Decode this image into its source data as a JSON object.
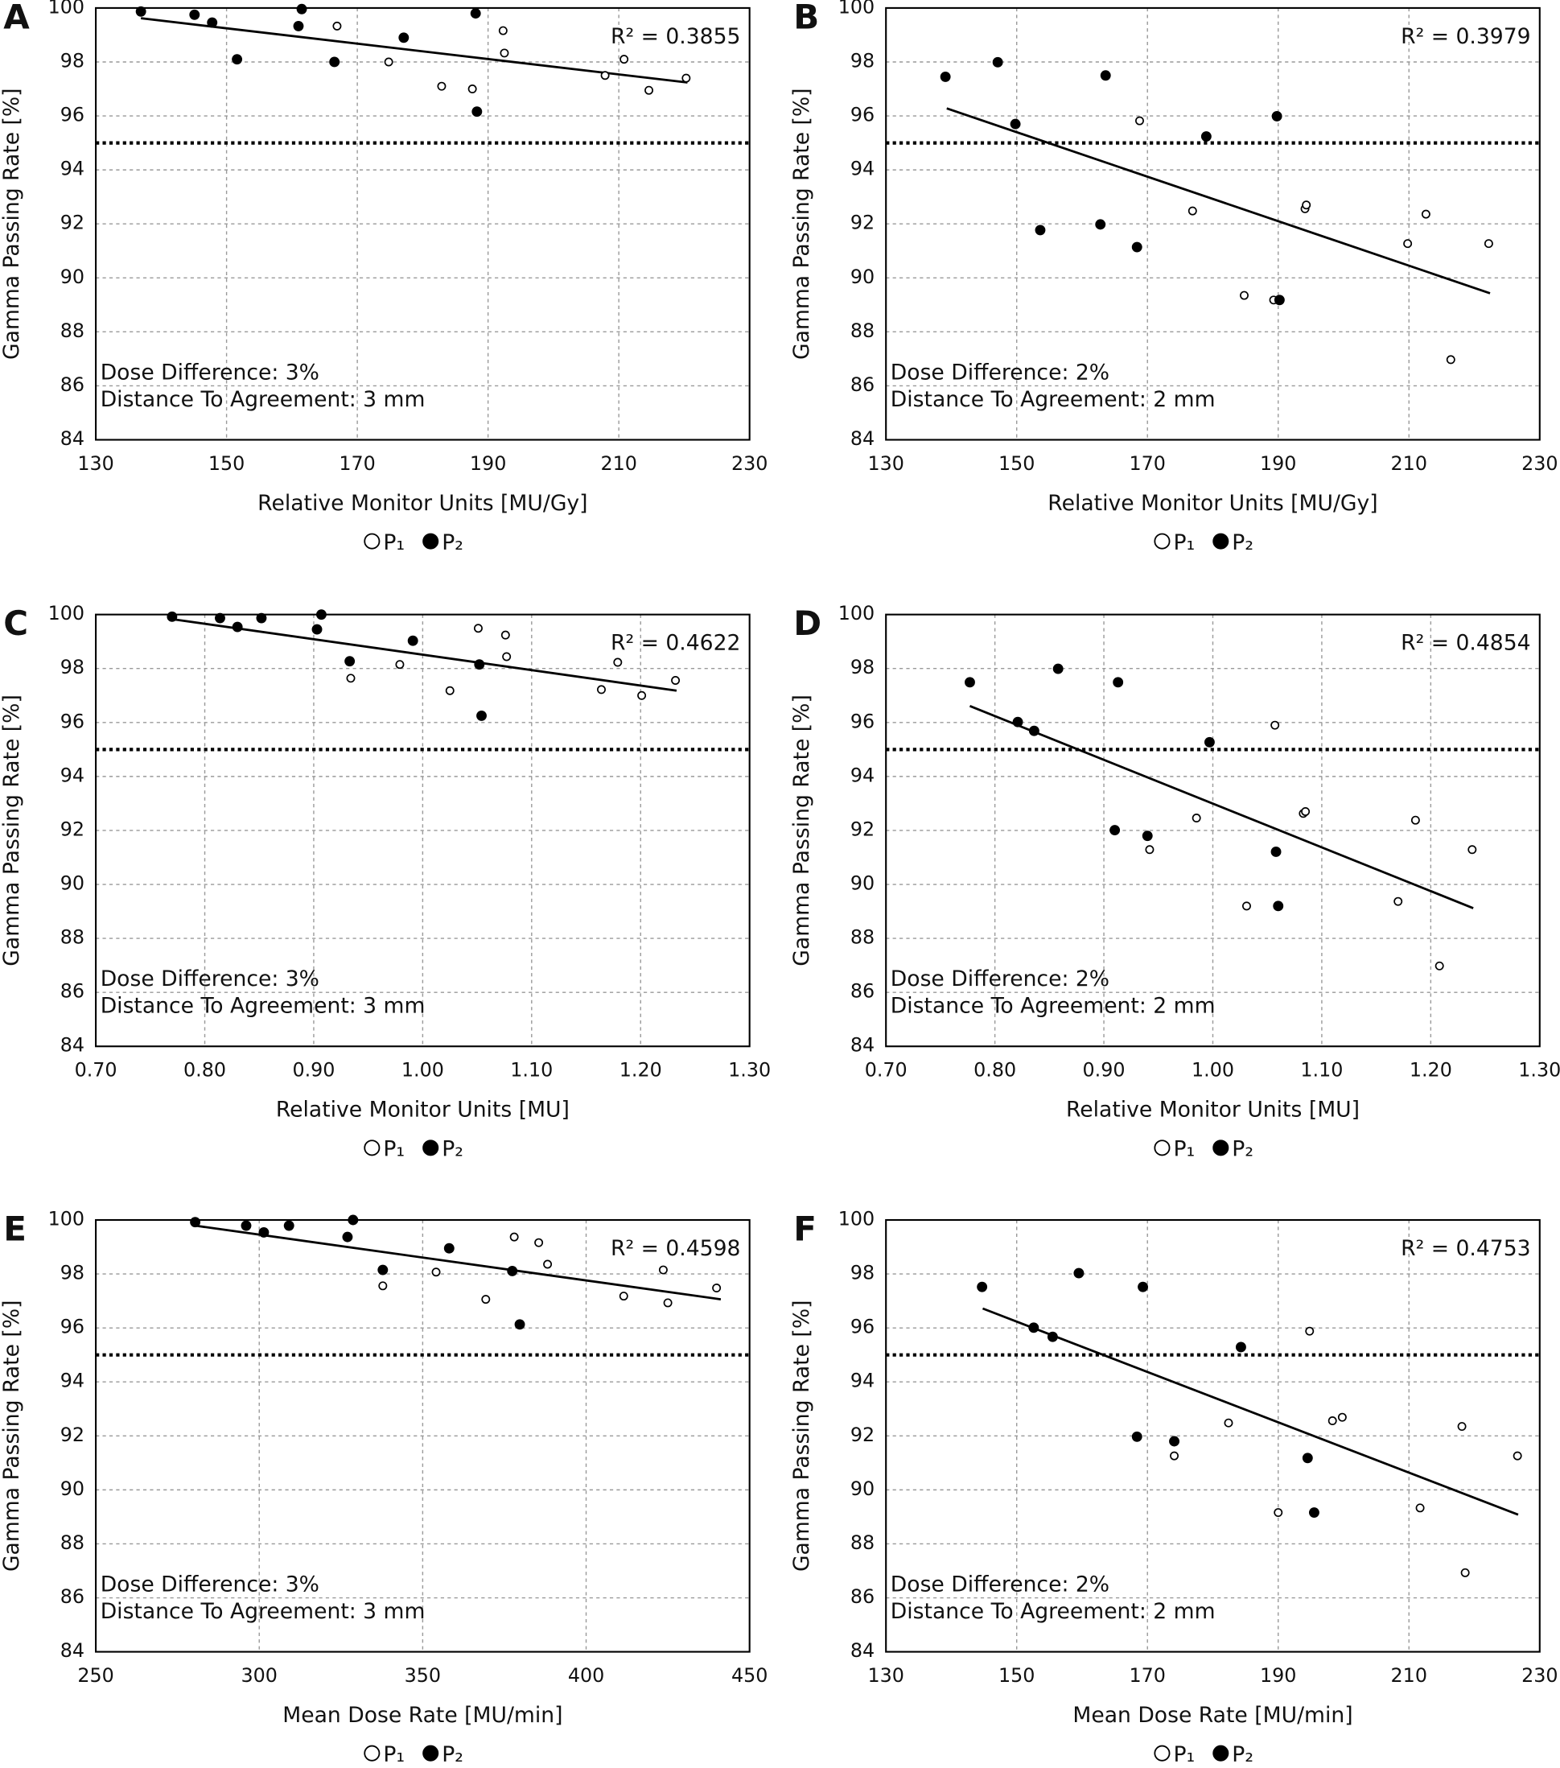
{
  "chart_data": [
    {
      "type": "scatter",
      "panel": "A",
      "xlabel": "Relative Monitor Units [MU/Gy]",
      "ylabel": "Gamma Passing Rate [%]",
      "xlim": [
        130,
        230
      ],
      "ylim": [
        84,
        100
      ],
      "xticks": [
        130,
        150,
        170,
        190,
        210,
        230
      ],
      "yticks": [
        84,
        86,
        88,
        90,
        92,
        94,
        96,
        98,
        100
      ],
      "grid": true,
      "annotation": "R² = 0.3855",
      "notes": [
        "Dose Difference: 3%",
        "Distance To Agreement: 3 mm"
      ],
      "threshold": 95,
      "fit": {
        "x": [
          136.9,
          220.5
        ],
        "y": [
          99.62,
          97.24
        ]
      },
      "series": [
        {
          "name": "P₁",
          "color": "#000000",
          "marker": "open",
          "x": [
            166.9,
            174.8,
            182.9,
            187.6,
            192.3,
            192.5,
            207.9,
            210.8,
            214.6,
            220.3
          ],
          "values": [
            99.33,
            98.0,
            97.1,
            97.0,
            99.16,
            98.33,
            97.5,
            98.1,
            96.95,
            97.4
          ]
        },
        {
          "name": "P₂",
          "color": "#000000",
          "marker": "filled",
          "x": [
            136.9,
            145.1,
            147.8,
            151.6,
            161.0,
            161.5,
            166.5,
            177.1,
            188.1,
            188.3
          ],
          "values": [
            99.87,
            99.75,
            99.46,
            98.1,
            99.33,
            99.96,
            98.0,
            98.9,
            99.8,
            96.16
          ]
        }
      ]
    },
    {
      "type": "scatter",
      "panel": "B",
      "xlabel": "Relative Monitor Units [MU/Gy]",
      "ylabel": "Gamma Passing Rate [%]",
      "xlim": [
        130,
        230
      ],
      "ylim": [
        84,
        100
      ],
      "xticks": [
        130,
        150,
        170,
        190,
        210,
        230
      ],
      "yticks": [
        84,
        86,
        88,
        90,
        92,
        94,
        96,
        98,
        100
      ],
      "grid": true,
      "annotation": "R² = 0.3979",
      "notes": [
        "Dose Difference: 2%",
        "Distance To Agreement: 2 mm"
      ],
      "threshold": 95,
      "fit": {
        "x": [
          139.3,
          222.4
        ],
        "y": [
          96.28,
          89.43
        ]
      },
      "series": [
        {
          "name": "P₁",
          "color": "#000000",
          "marker": "open",
          "x": [
            168.8,
            176.9,
            184.8,
            189.3,
            194.1,
            194.3,
            209.8,
            212.6,
            216.4,
            222.2
          ],
          "values": [
            95.82,
            92.48,
            89.35,
            89.18,
            92.56,
            92.7,
            91.27,
            92.36,
            86.97,
            91.27
          ]
        },
        {
          "name": "P₂",
          "color": "#000000",
          "marker": "filled",
          "x": [
            139.1,
            147.1,
            149.8,
            153.6,
            162.8,
            163.6,
            168.4,
            179.0,
            189.8,
            190.2
          ],
          "values": [
            97.45,
            97.99,
            95.7,
            91.77,
            91.98,
            97.5,
            91.14,
            95.24,
            95.99,
            89.18
          ]
        }
      ]
    },
    {
      "type": "scatter",
      "panel": "C",
      "xlabel": "Relative Monitor Units [MU]",
      "ylabel": "Gamma Passing Rate [%]",
      "xlim": [
        0.7,
        1.3
      ],
      "ylim": [
        84,
        100
      ],
      "xticks": [
        {
          "value": 0.7,
          "label": "0.70"
        },
        {
          "value": 0.8,
          "label": "0.80"
        },
        {
          "value": 0.9,
          "label": "0.90"
        },
        {
          "value": 1,
          "label": "1.00"
        },
        {
          "value": 1.1,
          "label": "1.10"
        },
        {
          "value": 1.2,
          "label": "1.20"
        },
        {
          "value": 1.3,
          "label": "1.30"
        }
      ],
      "yticks": [
        84,
        86,
        88,
        90,
        92,
        94,
        96,
        98,
        100
      ],
      "grid": true,
      "annotation": "R² = 0.4622",
      "notes": [
        "Dose Difference: 3%",
        "Distance To Agreement: 3 mm"
      ],
      "threshold": 95,
      "fit": {
        "x": [
          0.77,
          1.233
        ],
        "y": [
          99.83,
          97.18
        ]
      },
      "series": [
        {
          "name": "P₁",
          "color": "#000000",
          "marker": "open",
          "x": [
            0.934,
            0.979,
            1.025,
            1.051,
            1.076,
            1.077,
            1.164,
            1.179,
            1.201,
            1.232
          ],
          "values": [
            97.64,
            98.15,
            97.18,
            99.49,
            99.24,
            98.44,
            97.22,
            98.23,
            97.0,
            97.56
          ]
        },
        {
          "name": "P₂",
          "color": "#000000",
          "marker": "filled",
          "x": [
            0.77,
            0.814,
            0.83,
            0.852,
            0.903,
            0.907,
            0.933,
            0.991,
            1.052,
            1.054
          ],
          "values": [
            99.92,
            99.87,
            99.54,
            99.87,
            99.45,
            100.0,
            98.27,
            99.03,
            98.15,
            96.25
          ]
        }
      ]
    },
    {
      "type": "scatter",
      "panel": "D",
      "xlabel": "Relative Monitor Units [MU]",
      "ylabel": "Gamma Passing Rate [%]",
      "xlim": [
        0.7,
        1.3
      ],
      "ylim": [
        84,
        100
      ],
      "xticks": [
        {
          "value": 0.7,
          "label": "0.70"
        },
        {
          "value": 0.8,
          "label": "0.80"
        },
        {
          "value": 0.9,
          "label": "0.90"
        },
        {
          "value": 1,
          "label": "1.00"
        },
        {
          "value": 1.1,
          "label": "1.10"
        },
        {
          "value": 1.2,
          "label": "1.20"
        },
        {
          "value": 1.3,
          "label": "1.30"
        }
      ],
      "yticks": [
        84,
        86,
        88,
        90,
        92,
        94,
        96,
        98,
        100
      ],
      "grid": true,
      "annotation": "R² = 0.4854",
      "notes": [
        "Dose Difference: 2%",
        "Distance To Agreement: 2 mm"
      ],
      "threshold": 95,
      "fit": {
        "x": [
          0.777,
          1.239
        ],
        "y": [
          96.61,
          89.12
        ]
      },
      "series": [
        {
          "name": "P₁",
          "color": "#000000",
          "marker": "open",
          "x": [
            0.942,
            0.985,
            1.031,
            1.057,
            1.083,
            1.085,
            1.17,
            1.186,
            1.208,
            1.238
          ],
          "values": [
            91.29,
            92.46,
            89.2,
            95.9,
            92.63,
            92.7,
            89.37,
            92.38,
            86.98,
            91.29
          ]
        },
        {
          "name": "P₂",
          "color": "#000000",
          "marker": "filled",
          "x": [
            0.777,
            0.821,
            0.836,
            0.858,
            0.913,
            0.91,
            0.94,
            0.997,
            1.058,
            1.06
          ],
          "values": [
            97.49,
            96.02,
            95.69,
            97.99,
            97.49,
            92.01,
            91.8,
            95.27,
            91.21,
            89.2
          ]
        }
      ]
    },
    {
      "type": "scatter",
      "panel": "E",
      "xlabel": "Mean Dose Rate [MU/min]",
      "ylabel": "Gamma Passing Rate [%]",
      "xlim": [
        250,
        450
      ],
      "ylim": [
        84,
        100
      ],
      "xticks": [
        250,
        300,
        350,
        400,
        450
      ],
      "yticks": [
        84,
        86,
        88,
        90,
        92,
        94,
        96,
        98,
        100
      ],
      "grid": true,
      "annotation": "R² = 0.4598",
      "notes": [
        "Dose Difference: 3%",
        "Distance To Agreement: 3 mm"
      ],
      "threshold": 95,
      "fit": {
        "x": [
          280.4,
          441.2
        ],
        "y": [
          99.79,
          97.06
        ]
      },
      "series": [
        {
          "name": "P₁",
          "color": "#000000",
          "marker": "open",
          "x": [
            337.8,
            354.1,
            369.3,
            378.0,
            385.5,
            388.2,
            411.5,
            423.6,
            425.0,
            439.9
          ],
          "values": [
            97.56,
            98.07,
            97.06,
            99.37,
            99.16,
            98.36,
            97.18,
            98.15,
            96.93,
            97.48
          ]
        },
        {
          "name": "P₂",
          "color": "#000000",
          "marker": "filled",
          "x": [
            280.4,
            296.0,
            301.4,
            309.1,
            328.7,
            327.0,
            337.8,
            358.1,
            377.4,
            379.7
          ],
          "values": [
            99.92,
            99.79,
            99.54,
            99.79,
            100.0,
            99.37,
            98.15,
            98.95,
            98.11,
            96.13
          ]
        }
      ]
    },
    {
      "type": "scatter",
      "panel": "F",
      "xlabel": "Mean Dose Rate [MU/min]",
      "ylabel": "Gamma Passing Rate [%]",
      "xlim": [
        130,
        230
      ],
      "ylim": [
        84,
        100
      ],
      "xticks": [
        130,
        150,
        170,
        190,
        210,
        230
      ],
      "yticks": [
        84,
        86,
        88,
        90,
        92,
        94,
        96,
        98,
        100
      ],
      "grid": true,
      "annotation": "R² = 0.4753",
      "notes": [
        "Dose Difference: 2%",
        "Distance To Agreement: 2 mm"
      ],
      "threshold": 95,
      "fit": {
        "x": [
          144.8,
          226.7
        ],
        "y": [
          96.72,
          89.08
        ]
      },
      "series": [
        {
          "name": "P₁",
          "color": "#000000",
          "marker": "open",
          "x": [
            174.1,
            182.4,
            190.0,
            194.8,
            198.3,
            199.8,
            211.7,
            218.1,
            218.6,
            226.6
          ],
          "values": [
            91.26,
            92.48,
            89.16,
            95.88,
            92.56,
            92.69,
            89.33,
            92.35,
            86.93,
            91.26
          ]
        },
        {
          "name": "P₂",
          "color": "#000000",
          "marker": "filled",
          "x": [
            144.7,
            152.6,
            155.5,
            159.5,
            169.3,
            168.4,
            174.1,
            184.3,
            194.5,
            195.5
          ],
          "values": [
            97.52,
            96.01,
            95.67,
            98.03,
            97.52,
            91.97,
            91.8,
            95.29,
            91.18,
            89.16
          ]
        }
      ]
    }
  ]
}
